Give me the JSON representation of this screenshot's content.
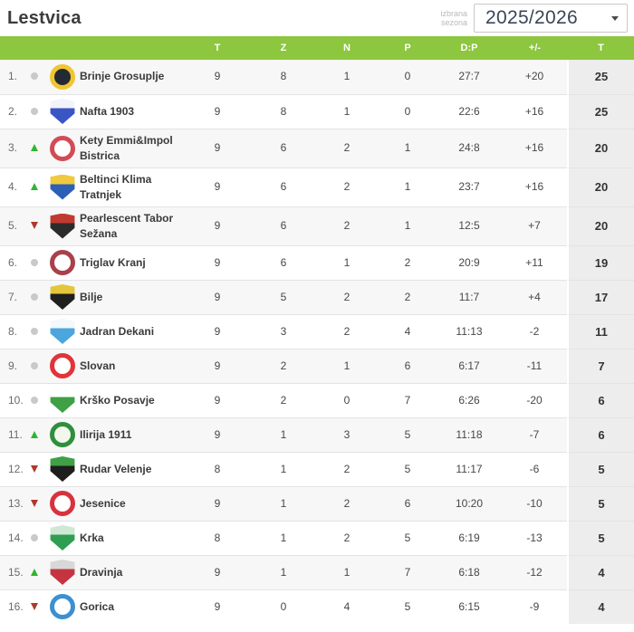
{
  "header": {
    "title": "Lestvica",
    "season_label": "izbrana sezona",
    "season_value": "2025/2026"
  },
  "colors": {
    "accent_green": "#8dc63f",
    "trend_up": "#2fb52f",
    "trend_down": "#ad392c",
    "trend_same": "#c9c9c9",
    "row_stripe": "#f7f7f7",
    "points_col_bg": "#ededed"
  },
  "table": {
    "columns": [
      "T",
      "Z",
      "N",
      "P",
      "D:P",
      "+/-",
      "T"
    ],
    "rows": [
      {
        "rank": "1.",
        "trend": "same",
        "team": "Brinje Grosuplje",
        "played": "9",
        "wins": "8",
        "draws": "1",
        "losses": "0",
        "goals": "27:7",
        "diff": "+20",
        "points": "25",
        "logo": {
          "shape": "circle",
          "primary": "#f0c531",
          "secondary": "#242a33"
        }
      },
      {
        "rank": "2.",
        "trend": "same",
        "team": "Nafta 1903",
        "played": "9",
        "wins": "8",
        "draws": "1",
        "losses": "0",
        "goals": "22:6",
        "diff": "+16",
        "points": "25",
        "logo": {
          "shape": "shield",
          "primary": "#3a55c4",
          "secondary": "#f2f4fb"
        }
      },
      {
        "rank": "3.",
        "trend": "up",
        "team": "Kety Emmi&Impol Bistrica",
        "played": "9",
        "wins": "6",
        "draws": "2",
        "losses": "1",
        "goals": "24:8",
        "diff": "+16",
        "points": "20",
        "logo": {
          "shape": "circle",
          "primary": "#d14c55",
          "secondary": "#ffffff"
        }
      },
      {
        "rank": "4.",
        "trend": "up",
        "team": "Beltinci Klima Tratnjek",
        "played": "9",
        "wins": "6",
        "draws": "2",
        "losses": "1",
        "goals": "23:7",
        "diff": "+16",
        "points": "20",
        "logo": {
          "shape": "shield",
          "primary": "#2c5fb5",
          "secondary": "#efc93f"
        }
      },
      {
        "rank": "5.",
        "trend": "down",
        "team": "Pearlescent Tabor Sežana",
        "played": "9",
        "wins": "6",
        "draws": "2",
        "losses": "1",
        "goals": "12:5",
        "diff": "+7",
        "points": "20",
        "logo": {
          "shape": "shield",
          "primary": "#2b2b2b",
          "secondary": "#c03a30"
        }
      },
      {
        "rank": "6.",
        "trend": "same",
        "team": "Triglav Kranj",
        "played": "9",
        "wins": "6",
        "draws": "1",
        "losses": "2",
        "goals": "20:9",
        "diff": "+11",
        "points": "19",
        "logo": {
          "shape": "circle",
          "primary": "#a8414b",
          "secondary": "#ffffff"
        }
      },
      {
        "rank": "7.",
        "trend": "same",
        "team": "Bilje",
        "played": "9",
        "wins": "5",
        "draws": "2",
        "losses": "2",
        "goals": "11:7",
        "diff": "+4",
        "points": "17",
        "logo": {
          "shape": "shield",
          "primary": "#1f1f1f",
          "secondary": "#e3c63c"
        }
      },
      {
        "rank": "8.",
        "trend": "same",
        "team": "Jadran Dekani",
        "played": "9",
        "wins": "3",
        "draws": "2",
        "losses": "4",
        "goals": "11:13",
        "diff": "-2",
        "points": "11",
        "logo": {
          "shape": "shield",
          "primary": "#4aa6dc",
          "secondary": "#f2f8fc"
        }
      },
      {
        "rank": "9.",
        "trend": "same",
        "team": "Slovan",
        "played": "9",
        "wins": "2",
        "draws": "1",
        "losses": "6",
        "goals": "6:17",
        "diff": "-11",
        "points": "7",
        "logo": {
          "shape": "circle",
          "primary": "#e23438",
          "secondary": "#ffffff"
        }
      },
      {
        "rank": "10.",
        "trend": "same",
        "team": "Krško Posavje",
        "played": "9",
        "wins": "2",
        "draws": "0",
        "losses": "7",
        "goals": "6:26",
        "diff": "-20",
        "points": "6",
        "logo": {
          "shape": "shield",
          "primary": "#3fa045",
          "secondary": "#ffffff"
        }
      },
      {
        "rank": "11.",
        "trend": "up",
        "team": "Ilirija 1911",
        "played": "9",
        "wins": "1",
        "draws": "3",
        "losses": "5",
        "goals": "11:18",
        "diff": "-7",
        "points": "6",
        "logo": {
          "shape": "circle",
          "primary": "#2f8f3c",
          "secondary": "#f2f7ec"
        }
      },
      {
        "rank": "12.",
        "trend": "down",
        "team": "Rudar Velenje",
        "played": "8",
        "wins": "1",
        "draws": "2",
        "losses": "5",
        "goals": "11:17",
        "diff": "-6",
        "points": "5",
        "logo": {
          "shape": "shield",
          "primary": "#1e1e1e",
          "secondary": "#3fa045"
        }
      },
      {
        "rank": "13.",
        "trend": "down",
        "team": "Jesenice",
        "played": "9",
        "wins": "1",
        "draws": "2",
        "losses": "6",
        "goals": "10:20",
        "diff": "-10",
        "points": "5",
        "logo": {
          "shape": "circle",
          "primary": "#d8323f",
          "secondary": "#ffffff"
        }
      },
      {
        "rank": "14.",
        "trend": "same",
        "team": "Krka",
        "played": "8",
        "wins": "1",
        "draws": "2",
        "losses": "5",
        "goals": "6:19",
        "diff": "-13",
        "points": "5",
        "logo": {
          "shape": "shield",
          "primary": "#2f9e52",
          "secondary": "#cfe8d4"
        }
      },
      {
        "rank": "15.",
        "trend": "up",
        "team": "Dravinja",
        "played": "9",
        "wins": "1",
        "draws": "1",
        "losses": "7",
        "goals": "6:18",
        "diff": "-12",
        "points": "4",
        "logo": {
          "shape": "shield",
          "primary": "#c53541",
          "secondary": "#d8d8d8"
        }
      },
      {
        "rank": "16.",
        "trend": "down",
        "team": "Gorica",
        "played": "9",
        "wins": "0",
        "draws": "4",
        "losses": "5",
        "goals": "6:15",
        "diff": "-9",
        "points": "4",
        "logo": {
          "shape": "circle",
          "primary": "#3c90d0",
          "secondary": "#ffffff"
        }
      }
    ]
  }
}
